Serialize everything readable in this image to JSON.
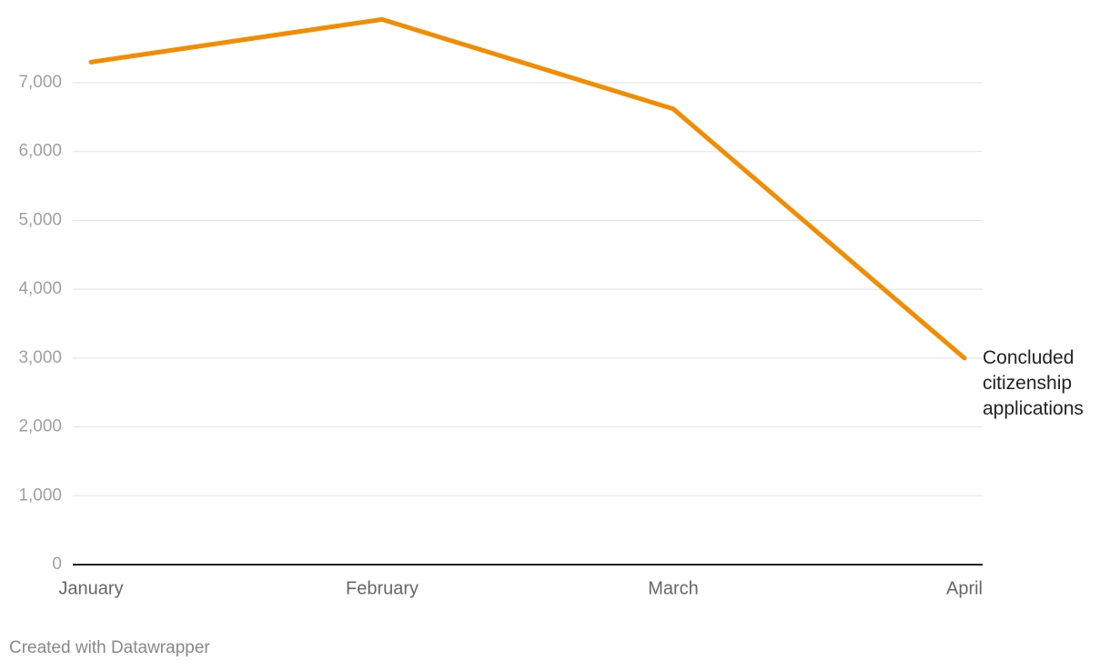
{
  "chart_data": {
    "type": "line",
    "categories": [
      "January",
      "February",
      "March",
      "April"
    ],
    "series": [
      {
        "name": "Concluded citizenship applications",
        "color": "#f28c00",
        "values": [
          7300,
          7920,
          6620,
          3000
        ]
      }
    ],
    "ylim": [
      0,
      8000
    ],
    "yticks": [
      0,
      {
        "value": 1000,
        "label": "1,000"
      },
      {
        "value": 2000,
        "label": "2,000"
      },
      {
        "value": 3000,
        "label": "3,000"
      },
      {
        "value": 4000,
        "label": "4,000"
      },
      {
        "value": 5000,
        "label": "5,000"
      },
      {
        "value": 6000,
        "label": "6,000"
      },
      {
        "value": 7000,
        "label": "7,000"
      }
    ],
    "grid": true
  },
  "footer": "Created with Datawrapper"
}
